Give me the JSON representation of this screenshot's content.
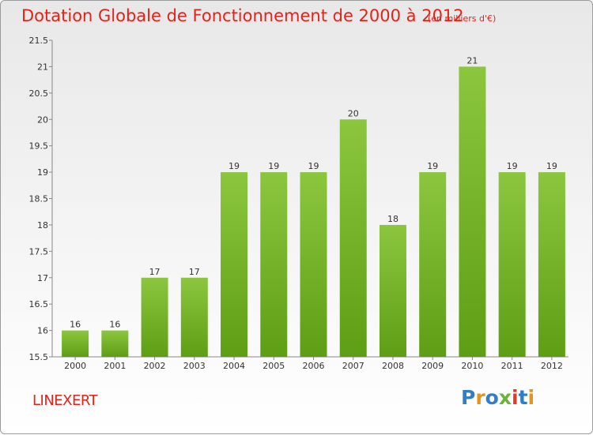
{
  "header": {
    "title": "Dotation Globale de Fonctionnement de 2000 à 2012",
    "subtitle": "(en milliers d'€)"
  },
  "commune": "LINEXERT",
  "logo": {
    "letters": [
      "P",
      "r",
      "o",
      "x",
      "i",
      "t",
      "i"
    ],
    "colors": [
      "#2f7fc7",
      "#e6951a",
      "#2f7fc7",
      "#6db23c",
      "#e23a2a",
      "#2f7fc7",
      "#e6951a"
    ]
  },
  "chart_data": {
    "type": "bar",
    "categories": [
      "2000",
      "2001",
      "2002",
      "2003",
      "2004",
      "2005",
      "2006",
      "2007",
      "2008",
      "2009",
      "2010",
      "2011",
      "2012"
    ],
    "values": [
      16,
      16,
      17,
      17,
      19,
      19,
      19,
      20,
      18,
      19,
      21,
      19,
      19
    ],
    "data_labels": [
      "16",
      "16",
      "17",
      "17",
      "19",
      "19",
      "19",
      "20",
      "18",
      "19",
      "21",
      "19",
      "19"
    ],
    "ylim": [
      15.5,
      21.5
    ],
    "yticks": [
      "15.5",
      "16",
      "16.5",
      "17",
      "17.5",
      "18",
      "18.5",
      "19",
      "19.5",
      "20",
      "20.5",
      "21",
      "21.5"
    ],
    "bar_color": "#8cc63f",
    "bar_color_dark": "#5e9e14",
    "grid": false
  }
}
